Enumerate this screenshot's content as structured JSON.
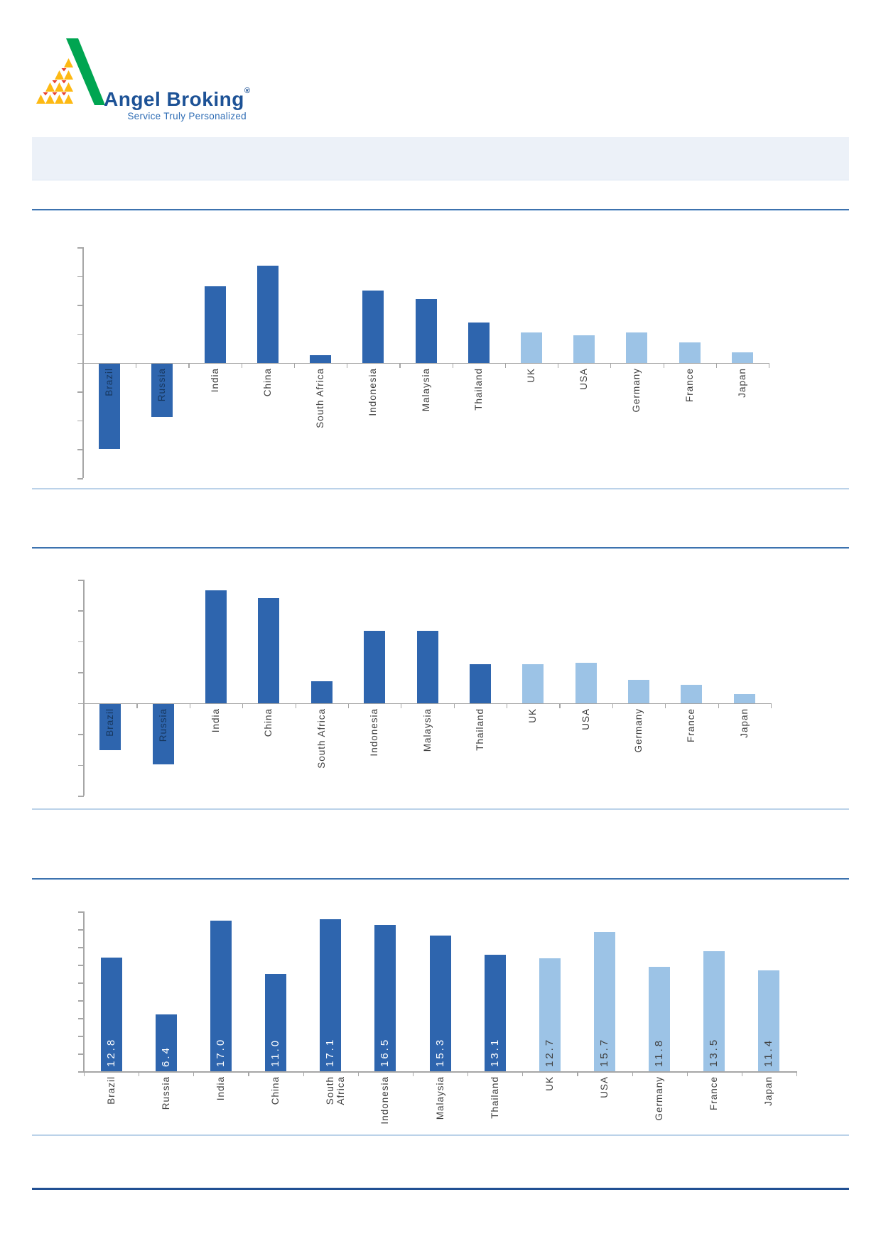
{
  "logo": {
    "brand": "Angel Broking",
    "registered": "®",
    "tagline": "Service Truly Personalized"
  },
  "colors": {
    "bar_dark": "#2E65AE",
    "bar_light": "#9CC3E6",
    "axis": "#A6A6A6",
    "category_label": "#404040",
    "category_label_on_bar": "#17375E",
    "value_label_on_dark": "#FFFFFF",
    "value_label_on_light": "#404040",
    "rule_blue": "#3D72AE",
    "rule_light": "#BBD2E9",
    "rule_footer": "#215093",
    "banner_fill": "#ECF1F8",
    "brand_blue": "#1D5296",
    "tagline_blue": "#2F6DB5",
    "logo_green": "#00A551",
    "logo_yellow": "#FDB913",
    "logo_red": "#E8432E"
  },
  "chart_data": [
    {
      "type": "bar",
      "categories": [
        "Brazil",
        "Russia",
        "India",
        "China",
        "South Africa",
        "Indonesia",
        "Malaysia",
        "Thailand",
        "UK",
        "USA",
        "Germany",
        "France",
        "Japan"
      ],
      "values": [
        -5.9,
        -3.7,
        5.3,
        6.7,
        0.5,
        5.0,
        4.4,
        2.8,
        2.1,
        1.9,
        2.1,
        1.4,
        0.7
      ],
      "ylim": [
        -8,
        8
      ],
      "tick_step": 2,
      "grid": false,
      "y_tick_labels_shown": false,
      "data_labels_shown": false,
      "dark_count": 8,
      "legend": "none",
      "title": ""
    },
    {
      "type": "bar",
      "categories": [
        "Brazil",
        "Russia",
        "India",
        "China",
        "South Africa",
        "Indonesia",
        "Malaysia",
        "Thailand",
        "UK",
        "USA",
        "Germany",
        "France",
        "Japan"
      ],
      "values": [
        -3.0,
        -3.9,
        7.3,
        6.8,
        1.4,
        4.7,
        4.7,
        2.5,
        2.5,
        2.6,
        1.5,
        1.2,
        0.6
      ],
      "ylim": [
        -6,
        8
      ],
      "tick_step": 2,
      "grid": false,
      "y_tick_labels_shown": false,
      "data_labels_shown": false,
      "dark_count": 8,
      "legend": "none",
      "title": ""
    },
    {
      "type": "bar",
      "categories": [
        "Brazil",
        "Russia",
        "India",
        "China",
        "South\nAfrica",
        "Indonesia",
        "Malaysia",
        "Thailand",
        "UK",
        "USA",
        "Germany",
        "France",
        "Japan"
      ],
      "values": [
        12.8,
        6.4,
        17.0,
        11.0,
        17.1,
        16.5,
        15.3,
        13.1,
        12.7,
        15.7,
        11.8,
        13.5,
        11.4
      ],
      "value_labels": [
        "12.8",
        "6.4",
        "17.0",
        "11.0",
        "17.1",
        "16.5",
        "15.3",
        "13.1",
        "12.7",
        "15.7",
        "11.8",
        "13.5",
        "11.4"
      ],
      "ylim": [
        0,
        18
      ],
      "tick_step": 2,
      "grid": false,
      "y_tick_labels_shown": false,
      "data_labels_shown": true,
      "dark_count": 8,
      "legend": "none",
      "title": ""
    }
  ]
}
